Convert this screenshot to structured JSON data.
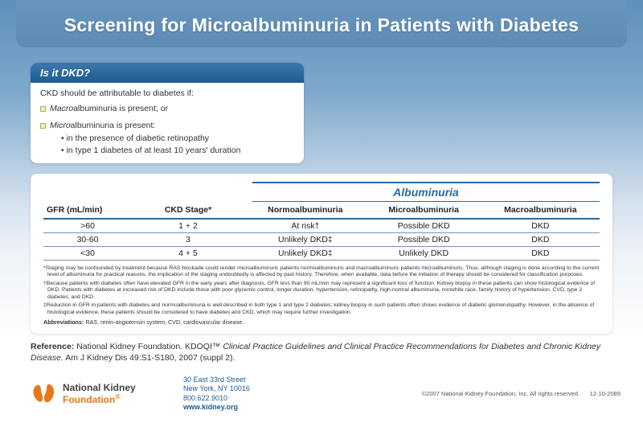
{
  "title": "Screening for Microalbuminuria in Patients with Diabetes",
  "dkd": {
    "heading": "Is it DKD?",
    "intro": "CKD should be attributable to diabetes if:",
    "item1_prefix": "Macro",
    "item1_rest": "albuminuria is present; or",
    "item2_prefix": "Micro",
    "item2_rest": "albuminuria is present:",
    "sub1": "in the presence of diabetic retinopathy",
    "sub2": "in type 1 diabetes of at least 10 years' duration"
  },
  "table": {
    "group_header": "Albuminuria",
    "cols": {
      "c1": "GFR (mL/min)",
      "c2": "CKD Stage*",
      "c3": "Normoalbuminuria",
      "c4": "Microalbuminuria",
      "c5": "Macroalbuminuria"
    },
    "rows": [
      {
        "gfr": ">60",
        "stage": "1 + 2",
        "normo": "At risk†",
        "micro": "Possible DKD",
        "macro": "DKD"
      },
      {
        "gfr": "30-60",
        "stage": "3",
        "normo": "Unlikely DKD‡",
        "micro": "Possible DKD",
        "macro": "DKD"
      },
      {
        "gfr": "<30",
        "stage": "4 + 5",
        "normo": "Unlikely DKD‡",
        "micro": "Unlikely DKD",
        "macro": "DKD"
      }
    ]
  },
  "footnotes": {
    "f1": "*Staging may be confounded by treatment because RAS blockade could render microalbuminuric patients normoalbuminuric and macroalbuminuric patients microalbuminuric. Thus, although staging is done according to the current level of albuminuria for practical reasons, the implication of the staging undoubtedly is affected by past history. Therefore, when available, data before the initiation of therapy should be considered for classification purposes.",
    "f2": "†Because patients with diabetes often have elevated GFR in the early years after diagnosis, GFR less than 90 mL/min may represent a significant loss of function. Kidney biopsy in these patients can show histological evidence of DKD. Patients with diabetes at increased risk of DKD include those with poor glycemic control, longer duration, hypertension, retinopathy, high-normal albuminuria, nonwhite race, family history of hypertension, CVD, type 2 diabetes, and DKD.",
    "f3": "‡Reduction in GFR in patients with diabetes and normoalbuminuria is well described in both type 1 and type 2 diabetes; kidney biopsy in such patients often shows evidence of diabetic glomerulopathy. However, in the absence of histological evidence, these patients should be considered to have diabetes and CKD, which may require further investigation.",
    "abbr_label": "Abbreviations:",
    "abbr_text": " RAS, renin-angiotensin system; CVD, cardiovascular disease."
  },
  "reference": {
    "label": "Reference: ",
    "source": "National Kidney Foundation. KDOQI™ ",
    "title_italic": "Clinical Practice Guidelines and Clinical Practice Recommendations for Diabetes and Chronic Kidney Disease.",
    "citation": " Am J Kidney Dis 49:S1-S180, 2007 (suppl 2)."
  },
  "footer": {
    "logo_line1": "National Kidney",
    "logo_line2": "Foundation",
    "addr_l1": "30 East 33rd Street",
    "addr_l2": "New York, NY 10016",
    "addr_l3": "800.622.9010",
    "addr_web": "www.kidney.org",
    "copyright": "©2007 National Kidney Foundation, Inc. All rights reserved.",
    "date": "12-10-2089"
  },
  "colors": {
    "accent_blue": "#2a6aa4",
    "orange": "#e67817"
  }
}
